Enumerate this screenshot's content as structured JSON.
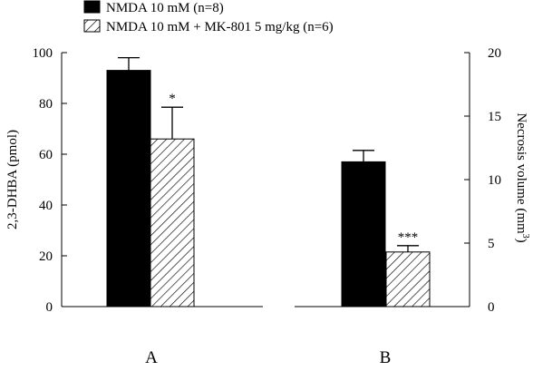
{
  "chart_data": {
    "type": "bar",
    "legend": {
      "placement": "top-left",
      "items": [
        {
          "label": "NMDA 10 mM (n=8)",
          "fill": "solid",
          "color": "#000000"
        },
        {
          "label": "NMDA 10 mM + MK-801 5 mg/kg (n=6)",
          "fill": "hatched",
          "color": "#000000"
        }
      ]
    },
    "panels": [
      {
        "label": "A",
        "axis": "left",
        "ylabel": "2,3-DHBA (pmol)",
        "ylim": [
          0,
          100
        ],
        "yticks": [
          "0",
          "20",
          "40",
          "60",
          "80",
          "100"
        ],
        "values": [
          93,
          66
        ],
        "errors": [
          5,
          12.5
        ],
        "annotations": [
          "",
          "*"
        ]
      },
      {
        "label": "B",
        "axis": "right",
        "ylabel": "Necrosis volume (mm",
        "ylabel_superscript": "3",
        "ylabel_suffix": ")",
        "ylim": [
          0,
          20
        ],
        "yticks": [
          "0",
          "5",
          "10",
          "15",
          "20"
        ],
        "values": [
          11.4,
          4.3
        ],
        "errors": [
          0.9,
          0.5
        ],
        "annotations": [
          "",
          "***"
        ]
      }
    ],
    "grid": false
  }
}
